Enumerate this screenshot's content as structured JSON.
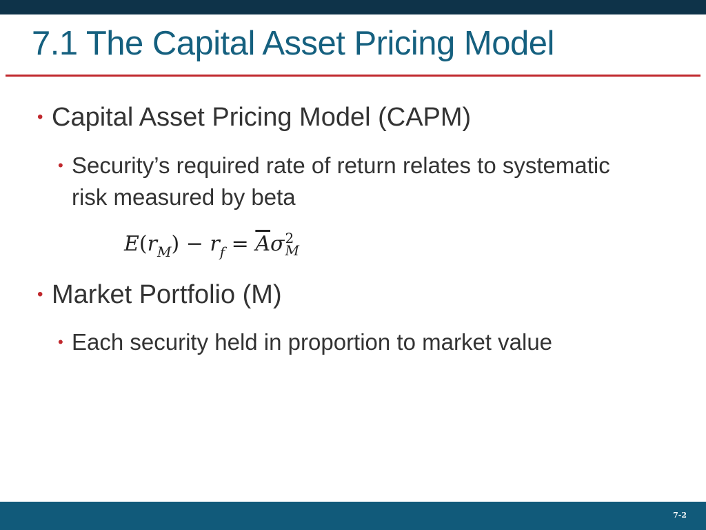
{
  "slide": {
    "title": "7.1 The Capital Asset Pricing Model",
    "bullets": [
      {
        "text": "Capital Asset Pricing Model (CAPM)",
        "sub": "Security’s required rate of return relates to systematic risk measured by beta"
      },
      {
        "text": "Market Portfolio (M)",
        "sub": "Each security held in proportion to market value"
      }
    ],
    "formula": {
      "E": "E",
      "open": "(",
      "r1": "r",
      "r1_sub": "M",
      "close": ")",
      "minus": " − ",
      "r2": "r",
      "r2_sub": "f",
      "equals": " = ",
      "A": "A",
      "sigma": "σ",
      "sigma_sup": "2",
      "sigma_sub": "M"
    },
    "bullet_glyph": "•",
    "page_number": "7-2"
  },
  "colors": {
    "title": "#15607f",
    "accent_rule": "#c0282d",
    "bullet_dot": "#c0282d",
    "top_band": "#0e3349",
    "bottom_band": "#115a7a",
    "body_text": "#333333"
  }
}
